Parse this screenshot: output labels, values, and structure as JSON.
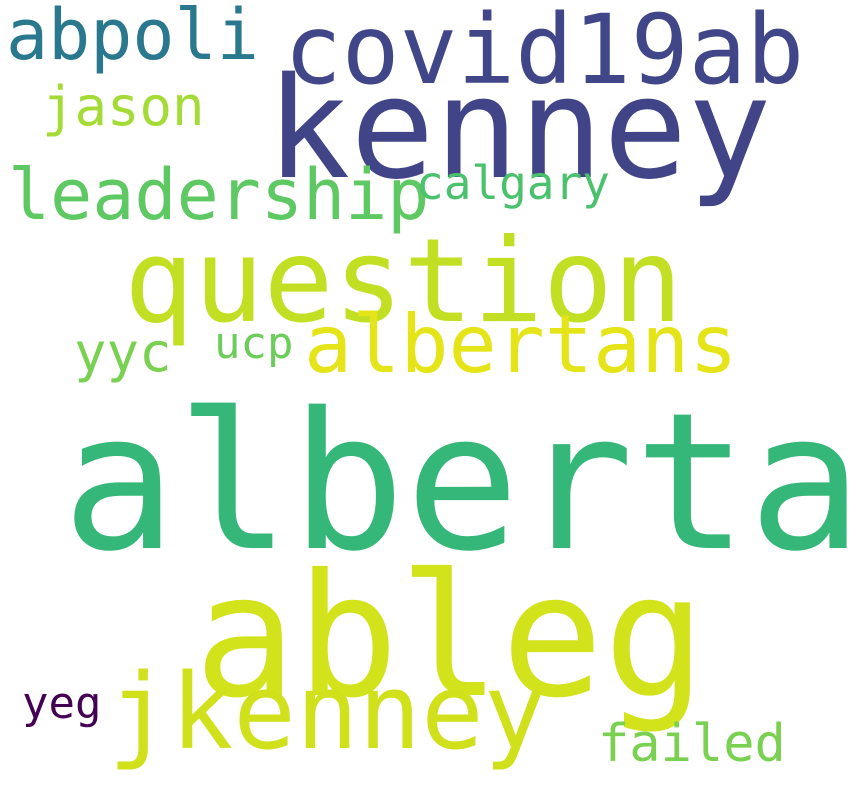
{
  "word_cloud": {
    "background": "#ffffff",
    "words": [
      {
        "key": "alberta",
        "text": "alberta",
        "color": "#35b779"
      },
      {
        "key": "ableg",
        "text": "ableg",
        "color": "#d2e21b"
      },
      {
        "key": "kenney",
        "text": "kenney",
        "color": "#414487"
      },
      {
        "key": "covid19ab",
        "text": "covid19ab",
        "color": "#404688"
      },
      {
        "key": "question",
        "text": "question",
        "color": "#c2df23"
      },
      {
        "key": "jkenney",
        "text": "jkenney",
        "color": "#d0e11c"
      },
      {
        "key": "albertans",
        "text": "albertans",
        "color": "#e5e419"
      },
      {
        "key": "leadership",
        "text": "leadership",
        "color": "#5ec962"
      },
      {
        "key": "abpoli",
        "text": "abpoli",
        "color": "#2a788e"
      },
      {
        "key": "jason",
        "text": "jason",
        "color": "#a5db36"
      },
      {
        "key": "calgary",
        "text": "calgary",
        "color": "#4ac16d"
      },
      {
        "key": "failed",
        "text": "failed",
        "color": "#7ad151"
      },
      {
        "key": "yyc",
        "text": "yyc",
        "color": "#7ad151"
      },
      {
        "key": "ucp",
        "text": "ucp",
        "color": "#6ccd5a"
      },
      {
        "key": "yeg",
        "text": "yeg",
        "color": "#440154"
      }
    ]
  }
}
